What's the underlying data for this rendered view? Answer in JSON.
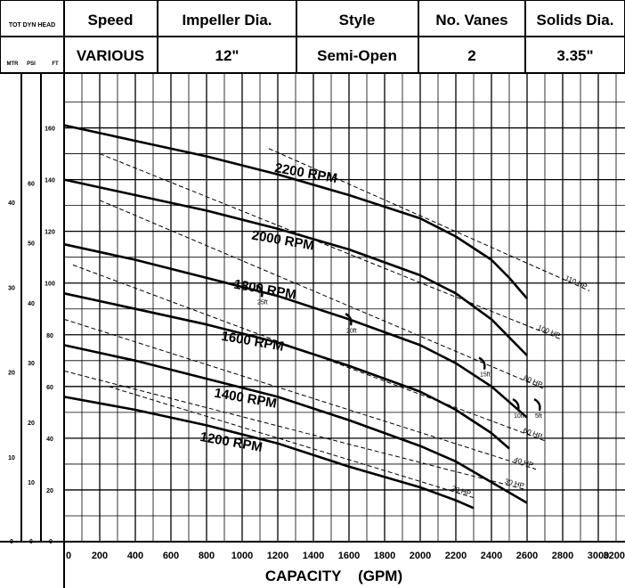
{
  "header": {
    "axis_group_label": "TOT DYN HEAD",
    "axis_unit_labels": [
      "MTR",
      "PSI",
      "FT"
    ],
    "columns": [
      {
        "label": "Speed",
        "value": "VARIOUS"
      },
      {
        "label": "Impeller Dia.",
        "value": "12\""
      },
      {
        "label": "Style",
        "value": "Semi-Open"
      },
      {
        "label": "No. Vanes",
        "value": "2"
      },
      {
        "label": "Solids Dia.",
        "value": "3.35\""
      }
    ]
  },
  "chart_data": {
    "type": "line",
    "xlabel": "CAPACITY    (GPM)",
    "ylabel": "",
    "xlim": [
      0,
      3200
    ],
    "ylim": [
      0,
      175
    ],
    "x_ticks": [
      0,
      200,
      400,
      600,
      800,
      1000,
      1200,
      1400,
      1600,
      1800,
      2000,
      2200,
      2400,
      2600,
      2800,
      3000,
      3200
    ],
    "y_ticks_ft": [
      20,
      40,
      60,
      80,
      100,
      120,
      140,
      160
    ],
    "y_ticks_psi": [
      10,
      20,
      30,
      40,
      50,
      60
    ],
    "y_ticks_mtr": [
      10,
      20,
      30,
      40
    ],
    "bottom_zero_labels": [
      "0",
      "0",
      "0"
    ],
    "grid": true,
    "series": [
      {
        "name": "2200 RPM",
        "label_x": 1180,
        "label_y": 143,
        "x": [
          0,
          400,
          800,
          1200,
          1600,
          2000,
          2200,
          2400,
          2500,
          2600
        ],
        "y": [
          161,
          155,
          149,
          142,
          134,
          125,
          118,
          109,
          102,
          94
        ]
      },
      {
        "name": "2000 RPM",
        "label_x": 1050,
        "label_y": 117,
        "x": [
          0,
          400,
          800,
          1200,
          1600,
          2000,
          2200,
          2400,
          2500,
          2600
        ],
        "y": [
          140,
          134,
          128,
          121,
          113,
          103,
          96,
          86,
          79,
          72
        ]
      },
      {
        "name": "1800 RPM",
        "label_x": 950,
        "label_y": 98,
        "x": [
          0,
          400,
          800,
          1200,
          1600,
          2000,
          2200,
          2400,
          2500,
          2600
        ],
        "y": [
          115,
          109,
          102,
          95,
          86,
          76,
          69,
          60,
          54,
          48
        ]
      },
      {
        "name": "1600 RPM",
        "label_x": 880,
        "label_y": 78,
        "x": [
          0,
          400,
          800,
          1200,
          1600,
          2000,
          2200,
          2400,
          2500
        ],
        "y": [
          96,
          90,
          84,
          77,
          68,
          58,
          51,
          42,
          36
        ]
      },
      {
        "name": "1400 RPM",
        "label_x": 840,
        "label_y": 56,
        "x": [
          0,
          400,
          800,
          1200,
          1600,
          2000,
          2200,
          2400,
          2600
        ],
        "y": [
          76,
          70,
          63,
          56,
          47,
          37,
          31,
          23,
          15
        ]
      },
      {
        "name": "1200 RPM",
        "label_x": 760,
        "label_y": 39,
        "x": [
          0,
          400,
          800,
          1200,
          1600,
          2000,
          2200,
          2300
        ],
        "y": [
          56,
          51,
          45,
          38,
          29,
          21,
          16,
          13
        ]
      }
    ],
    "hp_lines": [
      {
        "label": "110 HP",
        "x": [
          1150,
          2950
        ],
        "y": [
          152,
          97
        ]
      },
      {
        "label": "100 HP",
        "x": [
          200,
          2800
        ],
        "y": [
          150,
          78
        ]
      },
      {
        "label": "80 HP",
        "x": [
          200,
          2700
        ],
        "y": [
          132,
          59
        ]
      },
      {
        "label": "60 HP",
        "x": [
          50,
          2700
        ],
        "y": [
          107,
          39
        ]
      },
      {
        "label": "40 HP",
        "x": [
          0,
          2650
        ],
        "y": [
          86,
          28
        ]
      },
      {
        "label": "30 HP",
        "x": [
          0,
          2600
        ],
        "y": [
          66,
          20
        ]
      },
      {
        "label": "20 HP",
        "x": [
          250,
          2300
        ],
        "y": [
          60,
          17
        ]
      }
    ],
    "npsh_marks": [
      {
        "label": "25ft",
        "x": 1100,
        "y": 96
      },
      {
        "label": "20ft",
        "x": 1600,
        "y": 85
      },
      {
        "label": "15ft",
        "x": 2350,
        "y": 68
      },
      {
        "label": "10ft",
        "x": 2540,
        "y": 52
      },
      {
        "label": "5ft",
        "x": 2660,
        "y": 52
      }
    ]
  },
  "colors": {
    "line": "#000000",
    "grid": "#000000",
    "background": "#ffffff"
  }
}
